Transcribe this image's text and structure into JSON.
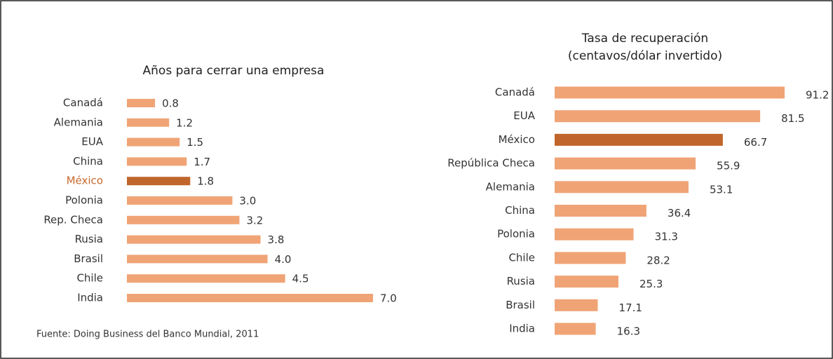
{
  "chart_data": [
    {
      "type": "bar",
      "orientation": "horizontal",
      "title": "Años para cerrar una empresa",
      "categories": [
        "Canadá",
        "Alemania",
        "EUA",
        "China",
        "México",
        "Polonia",
        "Rep. Checa",
        "Rusia",
        "Brasil",
        "Chile",
        "India"
      ],
      "values": [
        0.8,
        1.2,
        1.5,
        1.7,
        1.8,
        3.0,
        3.2,
        3.8,
        4.0,
        4.5,
        7.0
      ],
      "value_labels": [
        "0.8",
        "1.2",
        "1.5",
        "1.7",
        "1.8",
        "3.0",
        "3.2",
        "3.8",
        "4.0",
        "4.5",
        "7.0"
      ],
      "colors": [
        "#f0a476",
        "#f0a476",
        "#f0a476",
        "#f0a476",
        "#c0662c",
        "#f0a476",
        "#f0a476",
        "#f0a476",
        "#f0a476",
        "#f0a476",
        "#f0a476"
      ],
      "label_colors": [
        "#333333",
        "#333333",
        "#333333",
        "#333333",
        "#c8682c",
        "#333333",
        "#333333",
        "#333333",
        "#333333",
        "#333333",
        "#333333"
      ],
      "source": "Fuente: Doing Business del Banco Mundial, 2011"
    },
    {
      "type": "bar",
      "orientation": "horizontal",
      "title": [
        "Tasa de recuperación",
        "(centavos/dólar invertido)"
      ],
      "categories": [
        "Canadá",
        "EUA",
        "México",
        "República Checa",
        "Alemania",
        "China",
        "Polonia",
        "Chile",
        "Rusia",
        "Brasil",
        "India"
      ],
      "values": [
        91.2,
        81.5,
        66.7,
        55.9,
        53.1,
        36.4,
        31.3,
        28.2,
        25.3,
        17.1,
        16.3
      ],
      "colors": [
        "#f0a476",
        "#f0a476",
        "#c0662c",
        "#f0a476",
        "#f0a476",
        "#f0a476",
        "#f0a476",
        "#f0a476",
        "#f0a476",
        "#f0a476",
        "#f0a476"
      ],
      "label_colors": [
        "#333333",
        "#333333",
        "#333333",
        "#333333",
        "#333333",
        "#333333",
        "#333333",
        "#333333",
        "#333333",
        "#333333",
        "#333333"
      ]
    }
  ]
}
